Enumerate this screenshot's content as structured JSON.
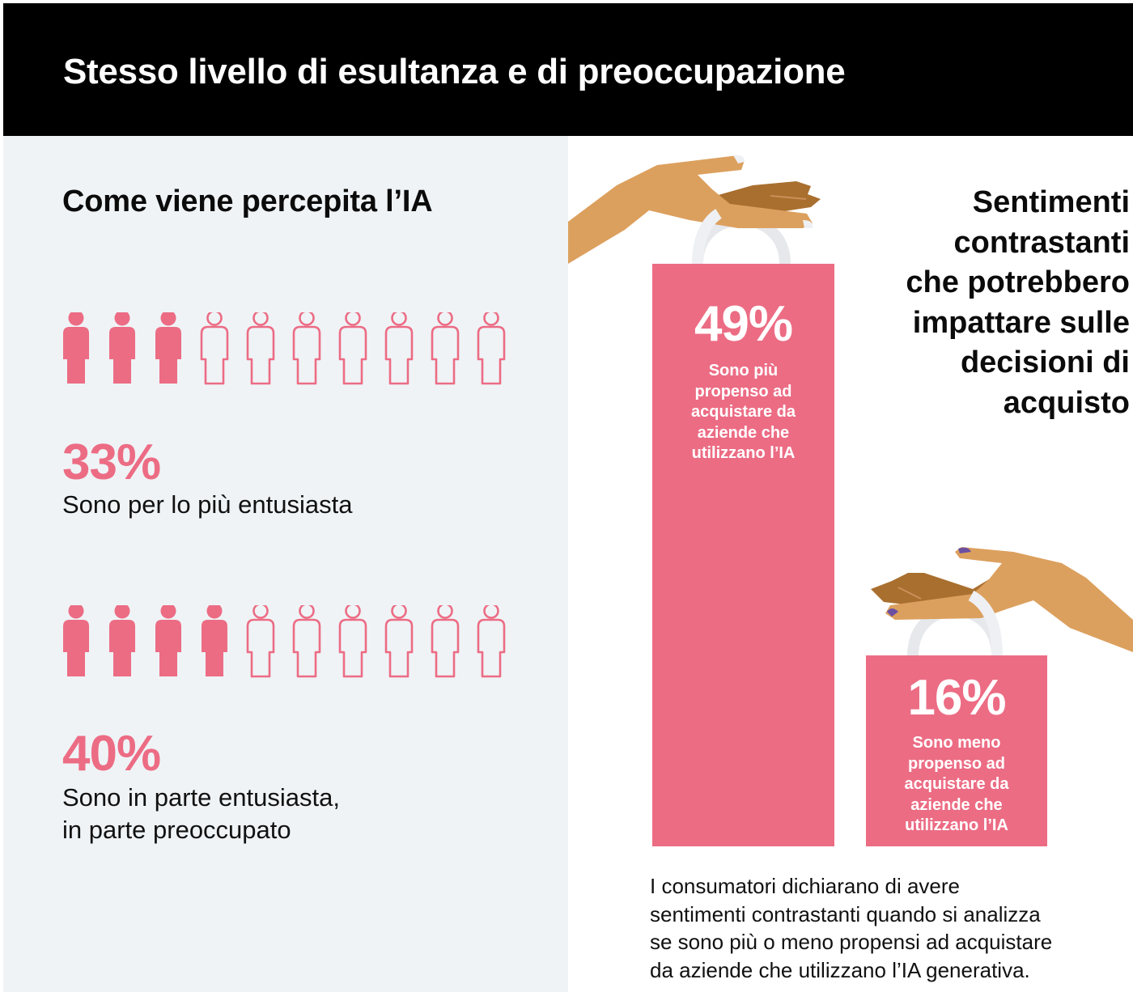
{
  "header": {
    "title": "Stesso livello di esultanza e di preoccupazione"
  },
  "left": {
    "section_title": "Come viene percepita l’IA",
    "groups": [
      {
        "value": "33%",
        "filled_icons": 3,
        "total_icons": 10,
        "label_lines": [
          "Sono per lo più entusiasta"
        ]
      },
      {
        "value": "40%",
        "filled_icons": 4,
        "total_icons": 10,
        "label_lines": [
          "Sono in parte entusiasta,",
          "in parte preoccupato"
        ]
      }
    ]
  },
  "right": {
    "heading_lines": [
      "Sentimenti",
      "contrastanti",
      "che potrebbero",
      "impattare sulle",
      "decisioni di",
      "acquisto"
    ],
    "bars": [
      {
        "value": "49%",
        "label_lines": [
          "Sono più",
          "propenso ad",
          "acquistare da",
          "aziende che",
          "utilizzano l’IA"
        ]
      },
      {
        "value": "16%",
        "label_lines": [
          "Sono meno",
          "propenso ad",
          "acquistare da",
          "aziende che",
          "utilizzano l’IA"
        ]
      }
    ],
    "caption_lines": [
      "I consumatori dichiarano di avere",
      "sentimenti contrastanti quando si analizza",
      "se sono più o meno propensi ad acquistare",
      "da aziende che utilizzano l’IA generativa."
    ]
  },
  "colors": {
    "accent_pink": "#ec6c84",
    "header_bg": "#000000",
    "left_panel_bg": "#eff3f6",
    "skin_light": "#dca05e",
    "skin_dark": "#a96f2f",
    "nail_purple": "#6b4fa0",
    "handle": "#e6e8ec"
  },
  "chart_data": [
    {
      "type": "pictogram",
      "title": "Come viene percepita l’IA",
      "categories": [
        "Sono per lo più entusiasta",
        "Sono in parte entusiasta, in parte preoccupato"
      ],
      "values": [
        33,
        40
      ],
      "unit": "%",
      "icons_per_row": 10,
      "filled_icons": [
        3,
        4
      ]
    },
    {
      "type": "bar",
      "title": "Sentimenti contrastanti che potrebbero impattare sulle decisioni di acquisto",
      "categories": [
        "Sono più propenso ad acquistare da aziende che utilizzano l’IA",
        "Sono meno propenso ad acquistare da aziende che utilizzano l’IA"
      ],
      "values": [
        49,
        16
      ],
      "unit": "%",
      "xlabel": "",
      "ylabel": "",
      "grid": false,
      "legend": "none"
    }
  ]
}
